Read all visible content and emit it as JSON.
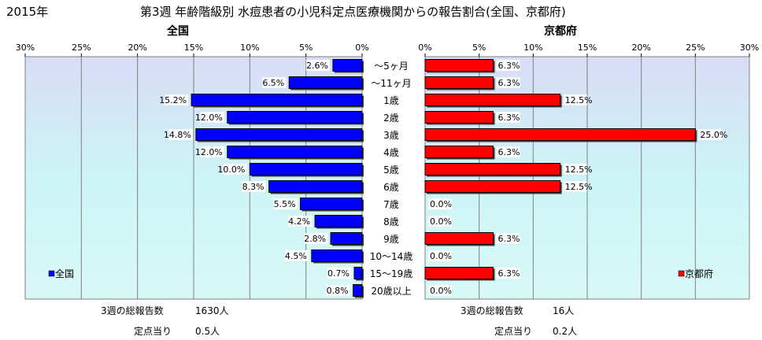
{
  "header": {
    "year": "2015年",
    "title": "第3週 年齢階級別 水痘患者の小児科定点医療機関からの報告割合(全国、京都府)"
  },
  "chart_data": [
    {
      "type": "bar",
      "orientation": "horizontal",
      "direction": "reversed",
      "title": "全国",
      "categories": [
        "～5ヶ月",
        "～11ヶ月",
        "1歳",
        "2歳",
        "3歳",
        "4歳",
        "5歳",
        "6歳",
        "7歳",
        "8歳",
        "9歳",
        "10～14歳",
        "15～19歳",
        "20歳以上"
      ],
      "series": [
        {
          "name": "全国",
          "values": [
            2.6,
            6.5,
            15.2,
            12.0,
            14.8,
            12.0,
            10.0,
            8.3,
            5.5,
            4.2,
            2.8,
            4.5,
            0.7,
            0.8
          ]
        }
      ],
      "xlim": [
        0,
        30
      ],
      "ticks": [
        "0%",
        "5%",
        "10%",
        "15%",
        "20%",
        "25%",
        "30%"
      ],
      "grid": true,
      "legend": "bottom-left",
      "color": "#0000ff"
    },
    {
      "type": "bar",
      "orientation": "horizontal",
      "title": "京都府",
      "categories": [
        "～5ヶ月",
        "～11ヶ月",
        "1歳",
        "2歳",
        "3歳",
        "4歳",
        "5歳",
        "6歳",
        "7歳",
        "8歳",
        "9歳",
        "10～14歳",
        "15～19歳",
        "20歳以上"
      ],
      "series": [
        {
          "name": "京都府",
          "values": [
            6.3,
            6.3,
            12.5,
            6.3,
            25.0,
            6.3,
            12.5,
            12.5,
            0.0,
            0.0,
            6.3,
            0.0,
            6.3,
            0.0
          ]
        }
      ],
      "xlim": [
        0,
        30
      ],
      "ticks": [
        "0%",
        "5%",
        "10%",
        "15%",
        "20%",
        "25%",
        "30%"
      ],
      "grid": true,
      "legend": "bottom-right",
      "color": "#ff0000"
    }
  ],
  "footer": {
    "national": {
      "total_label": "3週の総報告数",
      "total_value": "1630人",
      "per_label": "定点当り",
      "per_value": "0.5人"
    },
    "kyoto": {
      "total_label": "3週の総報告数",
      "total_value": "16人",
      "per_label": "定点当り",
      "per_value": "0.2人"
    }
  }
}
